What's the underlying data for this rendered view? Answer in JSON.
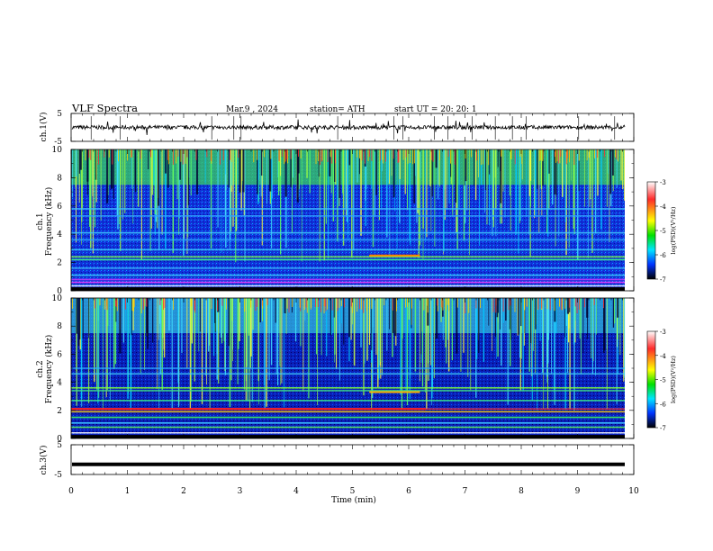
{
  "header": {
    "title": "VLF  Spectra",
    "date": "Mar.9  , 2024",
    "station": "station= ATH",
    "start_ut": "start  UT  =    20: 20: 1"
  },
  "colorbar": {
    "label": "log(PSD)(V²/Hz)",
    "ticks": [
      "-3",
      "-4",
      "-5",
      "-6",
      "-7"
    ],
    "colors": [
      "#ffffff",
      "#ff2a2a",
      "#ffff00",
      "#00e000",
      "#00e5ff",
      "#0033ff",
      "#000000"
    ]
  },
  "chart_data": [
    {
      "type": "line",
      "ylabel": "ch.1(V)",
      "ylim": [
        -5,
        5
      ],
      "yticks": [
        "5",
        "-5"
      ],
      "xlim": [
        0,
        10
      ]
    },
    {
      "type": "heatmap",
      "ylabel": "ch.1\nFrequency  (kHz)",
      "ylabel_lines": [
        "ch.1",
        "Frequency  (kHz)"
      ],
      "ylim": [
        0,
        10
      ],
      "yticks": [
        "0",
        "2",
        "4",
        "6",
        "8",
        "10"
      ],
      "xlim": [
        0,
        10
      ]
    },
    {
      "type": "heatmap",
      "ylabel": "ch.2\nFrequency  (kHz)",
      "ylabel_lines": [
        "ch.2",
        "Frequency  (kHz)"
      ],
      "ylim": [
        0,
        10
      ],
      "yticks": [
        "0",
        "2",
        "4",
        "6",
        "8",
        "10"
      ],
      "xlim": [
        0,
        10
      ]
    },
    {
      "type": "line",
      "ylabel": "ch.3(V)",
      "ylim": [
        -5,
        5
      ],
      "yticks": [
        "5",
        "-5"
      ],
      "xlim": [
        0,
        10
      ]
    }
  ],
  "x_axis": {
    "label": "Time  (min)",
    "ticks": [
      "0",
      "1",
      "2",
      "3",
      "4",
      "5",
      "6",
      "7",
      "8",
      "9",
      "10"
    ]
  }
}
